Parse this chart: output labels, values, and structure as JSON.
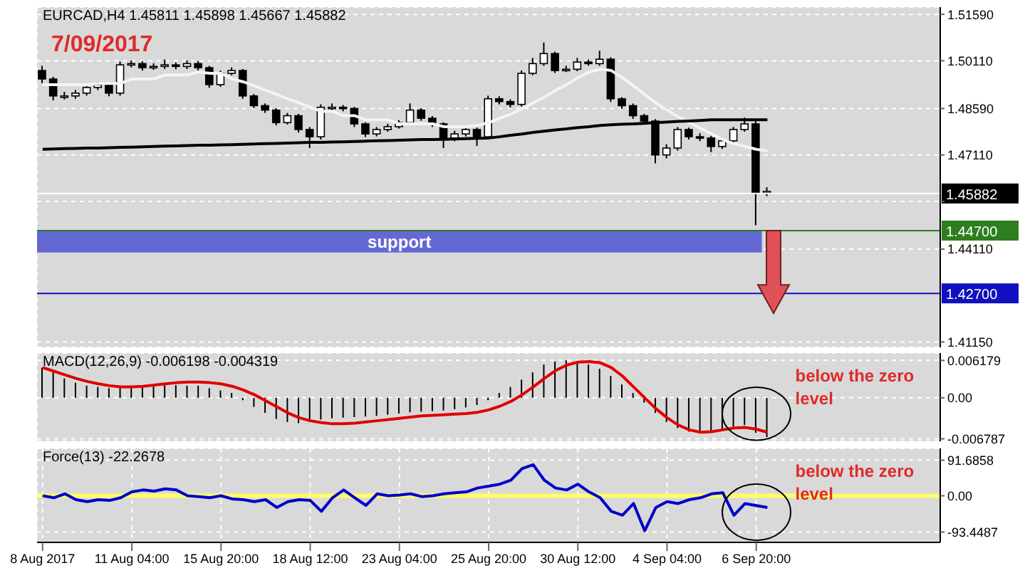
{
  "chart_data": [
    {
      "type": "candlestick",
      "title": "EURCAD,H4 1.45811 1.45898 1.45667 1.45882",
      "annotations": [
        "7/09/2017"
      ],
      "categories": [
        null,
        null,
        null,
        null,
        null,
        null,
        null,
        null,
        null,
        null,
        null,
        null,
        null,
        null,
        null,
        null,
        null,
        null,
        null,
        null,
        null,
        null,
        null,
        null,
        null,
        null,
        null,
        null,
        null,
        null,
        null,
        null,
        null,
        null,
        null,
        null,
        null,
        null,
        null,
        null,
        null,
        null,
        null,
        null,
        null,
        null,
        null,
        null,
        null,
        null,
        null,
        null,
        null,
        null,
        null,
        null,
        null,
        null,
        null,
        null,
        null,
        null,
        null,
        null,
        null,
        null
      ],
      "ohlc": [
        [
          1.498,
          1.4995,
          1.494,
          1.4953
        ],
        [
          1.4953,
          1.496,
          1.4885,
          1.4899
        ],
        [
          1.4899,
          1.4912,
          1.4888,
          1.4899
        ],
        [
          1.4899,
          1.4918,
          1.489,
          1.4908
        ],
        [
          1.4908,
          1.4935,
          1.49,
          1.4926
        ],
        [
          1.4926,
          1.4944,
          1.4918,
          1.4935
        ],
        [
          1.4935,
          1.494,
          1.4898,
          1.4908
        ],
        [
          1.4908,
          1.5008,
          1.49,
          1.4998
        ],
        [
          1.4998,
          1.5012,
          1.499,
          1.5002
        ],
        [
          1.5002,
          1.501,
          1.498,
          1.4989
        ],
        [
          1.4989,
          1.5003,
          1.4982,
          1.4993
        ],
        [
          1.4993,
          1.5015,
          1.4985,
          1.4998
        ],
        [
          1.4998,
          1.5006,
          1.4984,
          1.4993
        ],
        [
          1.4993,
          1.5012,
          1.4985,
          1.5002
        ],
        [
          1.5002,
          1.501,
          1.498,
          1.4989
        ],
        [
          1.4989,
          1.4995,
          1.4925,
          1.4935
        ],
        [
          1.4935,
          1.498,
          1.4928,
          1.4971
        ],
        [
          1.4971,
          1.499,
          1.4965,
          1.498
        ],
        [
          1.498,
          1.4985,
          1.489,
          1.4899
        ],
        [
          1.4899,
          1.4905,
          1.486,
          1.4868
        ],
        [
          1.4868,
          1.4875,
          1.4845,
          1.4854
        ],
        [
          1.4854,
          1.486,
          1.4805,
          1.4814
        ],
        [
          1.4814,
          1.4845,
          1.4808,
          1.4836
        ],
        [
          1.4836,
          1.4842,
          1.4782,
          1.4792
        ],
        [
          1.4792,
          1.48,
          1.4733,
          1.4769
        ],
        [
          1.4769,
          1.4872,
          1.476,
          1.4863
        ],
        [
          1.4863,
          1.4875,
          1.4852,
          1.4863
        ],
        [
          1.4863,
          1.487,
          1.485,
          1.4859
        ],
        [
          1.4859,
          1.4864,
          1.48,
          1.481
        ],
        [
          1.481,
          1.4815,
          1.4768,
          1.4778
        ],
        [
          1.4778,
          1.48,
          1.477,
          1.4792
        ],
        [
          1.4792,
          1.481,
          1.4785,
          1.4801
        ],
        [
          1.4801,
          1.4822,
          1.4795,
          1.4814
        ],
        [
          1.4814,
          1.4875,
          1.4808,
          1.4854
        ],
        [
          1.4854,
          1.486,
          1.482,
          1.4828
        ],
        [
          1.4828,
          1.4835,
          1.48,
          1.481
        ],
        [
          1.481,
          1.4815,
          1.4733,
          1.4765
        ],
        [
          1.4765,
          1.4788,
          1.4755,
          1.4778
        ],
        [
          1.4778,
          1.48,
          1.477,
          1.4792
        ],
        [
          1.4792,
          1.4798,
          1.474,
          1.4769
        ],
        [
          1.4769,
          1.49,
          1.4762,
          1.489
        ],
        [
          1.489,
          1.4898,
          1.4872,
          1.4881
        ],
        [
          1.4881,
          1.4888,
          1.4862,
          1.4872
        ],
        [
          1.4872,
          1.498,
          1.4865,
          1.4971
        ],
        [
          1.4971,
          1.502,
          1.4965,
          1.5002
        ],
        [
          1.5002,
          1.5069,
          1.4995,
          1.5034
        ],
        [
          1.5034,
          1.504,
          1.4972,
          1.498
        ],
        [
          1.498,
          1.4995,
          1.4975,
          1.4984
        ],
        [
          1.4984,
          1.502,
          1.4978,
          1.5007
        ],
        [
          1.5007,
          1.5015,
          1.4995,
          1.5002
        ],
        [
          1.5002,
          1.5043,
          1.4995,
          1.5016
        ],
        [
          1.5016,
          1.5022,
          1.488,
          1.489
        ],
        [
          1.489,
          1.4895,
          1.4858,
          1.4868
        ],
        [
          1.4868,
          1.4875,
          1.4826,
          1.4836
        ],
        [
          1.4836,
          1.4842,
          1.481,
          1.4819
        ],
        [
          1.4819,
          1.4825,
          1.4684,
          1.4711
        ],
        [
          1.4711,
          1.4745,
          1.47,
          1.4733
        ],
        [
          1.4733,
          1.48,
          1.4725,
          1.4792
        ],
        [
          1.4792,
          1.4798,
          1.476,
          1.4769
        ],
        [
          1.4769,
          1.478,
          1.4755,
          1.4765
        ],
        [
          1.4765,
          1.4772,
          1.472,
          1.4738
        ],
        [
          1.4738,
          1.4765,
          1.473,
          1.4756
        ],
        [
          1.4756,
          1.48,
          1.4748,
          1.4792
        ],
        [
          1.4792,
          1.483,
          1.4785,
          1.481
        ],
        [
          1.481,
          1.4825,
          1.4487,
          1.459
        ],
        [
          1.459,
          1.4608,
          1.458,
          1.4595
        ]
      ],
      "series": [
        {
          "type": "line",
          "color": "#f4f4f4",
          "values": [
            1.4935,
            1.4935,
            1.4935,
            1.4935,
            1.4935,
            1.4939,
            1.4939,
            1.4939,
            1.4953,
            1.4953,
            1.4953,
            1.4966,
            1.4966,
            1.4966,
            1.4975,
            1.4971,
            1.4971,
            1.4953,
            1.4944,
            1.4931,
            1.4917,
            1.4904,
            1.489,
            1.4877,
            1.4863,
            1.485,
            1.485,
            1.4836,
            1.4836,
            1.4823,
            1.4823,
            1.4823,
            1.481,
            1.481,
            1.481,
            1.481,
            1.4801,
            1.4801,
            1.4801,
            1.4805,
            1.4814,
            1.4828,
            1.4841,
            1.4859,
            1.4877,
            1.4895,
            1.4917,
            1.4935,
            1.4957,
            1.4975,
            1.4984,
            1.498,
            1.4957,
            1.4931,
            1.4904,
            1.4877,
            1.4854,
            1.4832,
            1.4814,
            1.4796,
            1.4778,
            1.476,
            1.4747,
            1.4738,
            1.4729,
            1.4724
          ]
        },
        {
          "type": "line",
          "color": "#000000",
          "values": [
            1.4729,
            1.473,
            1.4731,
            1.4732,
            1.4733,
            1.4733,
            1.4734,
            1.4735,
            1.4736,
            1.4737,
            1.4738,
            1.4739,
            1.474,
            1.4741,
            1.4742,
            1.4742,
            1.4743,
            1.4744,
            1.4745,
            1.4746,
            1.4747,
            1.4748,
            1.4749,
            1.475,
            1.4751,
            1.4751,
            1.4752,
            1.4753,
            1.4754,
            1.4755,
            1.4756,
            1.4757,
            1.4758,
            1.4759,
            1.476,
            1.476,
            1.4761,
            1.4762,
            1.4763,
            1.4764,
            1.4765,
            1.4769,
            1.4774,
            1.4778,
            1.4783,
            1.4787,
            1.4791,
            1.4794,
            1.4798,
            1.4801,
            1.4805,
            1.4807,
            1.4809,
            1.481,
            1.4812,
            1.4814,
            1.4816,
            1.4818,
            1.4819,
            1.4821,
            1.4823,
            1.4823,
            1.4823,
            1.4823,
            1.4823,
            1.4823
          ]
        }
      ],
      "ylim": [
        1.4098,
        1.5182
      ],
      "yticks": [
        {
          "value": 1.5159,
          "label": "1.51590"
        },
        {
          "value": 1.5011,
          "label": "1.50110"
        },
        {
          "value": 1.4859,
          "label": "1.48590"
        },
        {
          "value": 1.4711,
          "label": "1.47110"
        },
        {
          "value": 1.4563,
          "label": null
        },
        {
          "value": 1.4411,
          "label": "1.44110"
        },
        {
          "value": 1.4115,
          "label": "1.41150"
        }
      ],
      "ref_lines": [
        {
          "axis": "y",
          "value": 1.447,
          "label": "1.44700",
          "color": "#2e7d1e"
        },
        {
          "axis": "y",
          "value": 1.427,
          "label": "1.42700",
          "color": "#1010c0"
        },
        {
          "axis": "y",
          "value": 1.45882,
          "label": "1.45882",
          "color": "#ffffff"
        }
      ],
      "bands": [
        {
          "axis": "y",
          "from": 1.44,
          "to": 1.447,
          "label": "support",
          "color": "#6468d4"
        }
      ],
      "grid": true,
      "tick_labels": "y",
      "marker": "none"
    },
    {
      "type": "bar",
      "title": "MACD(12,26,9) -0.006198 -0.004319",
      "annotations": [
        "below the zero level"
      ],
      "categories": [
        null,
        null,
        null,
        null,
        null,
        null,
        null,
        null,
        null,
        null,
        null,
        null,
        null,
        null,
        null,
        null,
        null,
        null,
        null,
        null,
        null,
        null,
        null,
        null,
        null,
        null,
        null,
        null,
        null,
        null,
        null,
        null,
        null,
        null,
        null,
        null,
        null,
        null,
        null,
        null,
        null,
        null,
        null,
        null,
        null,
        null,
        null,
        null,
        null,
        null,
        null,
        null,
        null,
        null,
        null,
        null,
        null,
        null,
        null,
        null,
        null,
        null,
        null,
        null,
        null,
        null
      ],
      "series": [
        {
          "type": "bar",
          "color": "#000000",
          "values": [
            0.005,
            0.0042,
            0.0032,
            0.0025,
            0.002,
            0.0018,
            0.0016,
            0.0018,
            0.002,
            0.0021,
            0.0022,
            0.0022,
            0.0021,
            0.002,
            0.002,
            0.0016,
            0.0012,
            0.0008,
            -0.0004,
            -0.0015,
            -0.0025,
            -0.0035,
            -0.004,
            -0.0042,
            -0.004,
            -0.0036,
            -0.0034,
            -0.0033,
            -0.0032,
            -0.0031,
            -0.003,
            -0.0028,
            -0.0026,
            -0.0024,
            -0.0023,
            -0.0022,
            -0.0021,
            -0.0019,
            -0.0016,
            -0.0012,
            -0.0004,
            0.0008,
            0.0018,
            0.003,
            0.0042,
            0.0055,
            0.006,
            0.0062,
            0.006,
            0.0055,
            0.0048,
            0.0036,
            0.0022,
            0.0008,
            -0.0008,
            -0.0025,
            -0.004,
            -0.005,
            -0.0056,
            -0.0058,
            -0.0056,
            -0.0052,
            -0.0048,
            -0.0045,
            -0.0058,
            -0.0065
          ]
        },
        {
          "type": "line",
          "color": "#e00000",
          "values": [
            0.005,
            0.0044,
            0.0038,
            0.0032,
            0.0027,
            0.0023,
            0.002,
            0.0018,
            0.0018,
            0.0019,
            0.0021,
            0.0023,
            0.0025,
            0.0026,
            0.0026,
            0.0025,
            0.0023,
            0.0019,
            0.0013,
            0.0005,
            -0.0005,
            -0.0015,
            -0.0025,
            -0.0033,
            -0.0038,
            -0.0041,
            -0.0043,
            -0.0043,
            -0.0042,
            -0.004,
            -0.0038,
            -0.0036,
            -0.0034,
            -0.0032,
            -0.003,
            -0.0029,
            -0.0028,
            -0.0027,
            -0.0026,
            -0.0024,
            -0.002,
            -0.0014,
            -0.0006,
            0.0005,
            0.0018,
            0.0032,
            0.0045,
            0.0054,
            0.0059,
            0.006,
            0.0058,
            0.005,
            0.0036,
            0.0018,
            0.0,
            -0.0018,
            -0.0033,
            -0.0045,
            -0.0053,
            -0.0057,
            -0.0056,
            -0.0053,
            -0.005,
            -0.0049,
            -0.0052,
            -0.0057
          ]
        }
      ],
      "ylim": [
        -0.0072,
        0.0074
      ],
      "yticks": [
        {
          "value": 0.006179,
          "label": "0.006179"
        },
        {
          "value": 0,
          "label": "0.00"
        },
        {
          "value": -0.006787,
          "label": "-0.006787"
        }
      ],
      "grid": true,
      "tick_labels": "y",
      "marker": "none"
    },
    {
      "type": "line",
      "title": "Force(13) -22.2678",
      "annotations": [
        "below the zero level"
      ],
      "categories": [
        "8 Aug 2017",
        null,
        null,
        null,
        null,
        null,
        null,
        null,
        "11 Aug 04:00",
        null,
        null,
        null,
        null,
        null,
        null,
        null,
        "15 Aug 20:00",
        null,
        null,
        null,
        null,
        null,
        null,
        null,
        "18 Aug 12:00",
        null,
        null,
        null,
        null,
        null,
        null,
        null,
        "23 Aug 04:00",
        null,
        null,
        null,
        null,
        null,
        null,
        null,
        "25 Aug 20:00",
        null,
        null,
        null,
        null,
        null,
        null,
        null,
        "30 Aug 12:00",
        null,
        null,
        null,
        null,
        null,
        null,
        null,
        "4 Sep 04:00",
        null,
        null,
        null,
        null,
        null,
        null,
        null,
        "6 Sep 20:00",
        null
      ],
      "series": [
        {
          "color": "#0000c8",
          "values": [
            0,
            -5,
            5,
            -10,
            -15,
            -10,
            -12,
            -5,
            10,
            15,
            12,
            18,
            15,
            0,
            -2,
            -5,
            0,
            -8,
            -10,
            -15,
            -10,
            -30,
            -15,
            -10,
            -12,
            -40,
            -5,
            15,
            -5,
            -25,
            5,
            0,
            2,
            5,
            -2,
            0,
            5,
            8,
            10,
            20,
            25,
            30,
            40,
            70,
            80,
            40,
            20,
            15,
            30,
            10,
            -5,
            -40,
            -50,
            -20,
            -90,
            -30,
            -15,
            -20,
            -10,
            -5,
            5,
            8,
            -50,
            -20,
            -25,
            -30
          ]
        }
      ],
      "ylim": [
        -120,
        122
      ],
      "yticks": [
        91.6858,
        {
          "value": 0,
          "label": "0.00"
        },
        -93.4487
      ],
      "ref_lines": [
        {
          "axis": "y",
          "value": 0,
          "color": "#ffff66"
        }
      ],
      "grid": true,
      "marker": "none"
    }
  ]
}
